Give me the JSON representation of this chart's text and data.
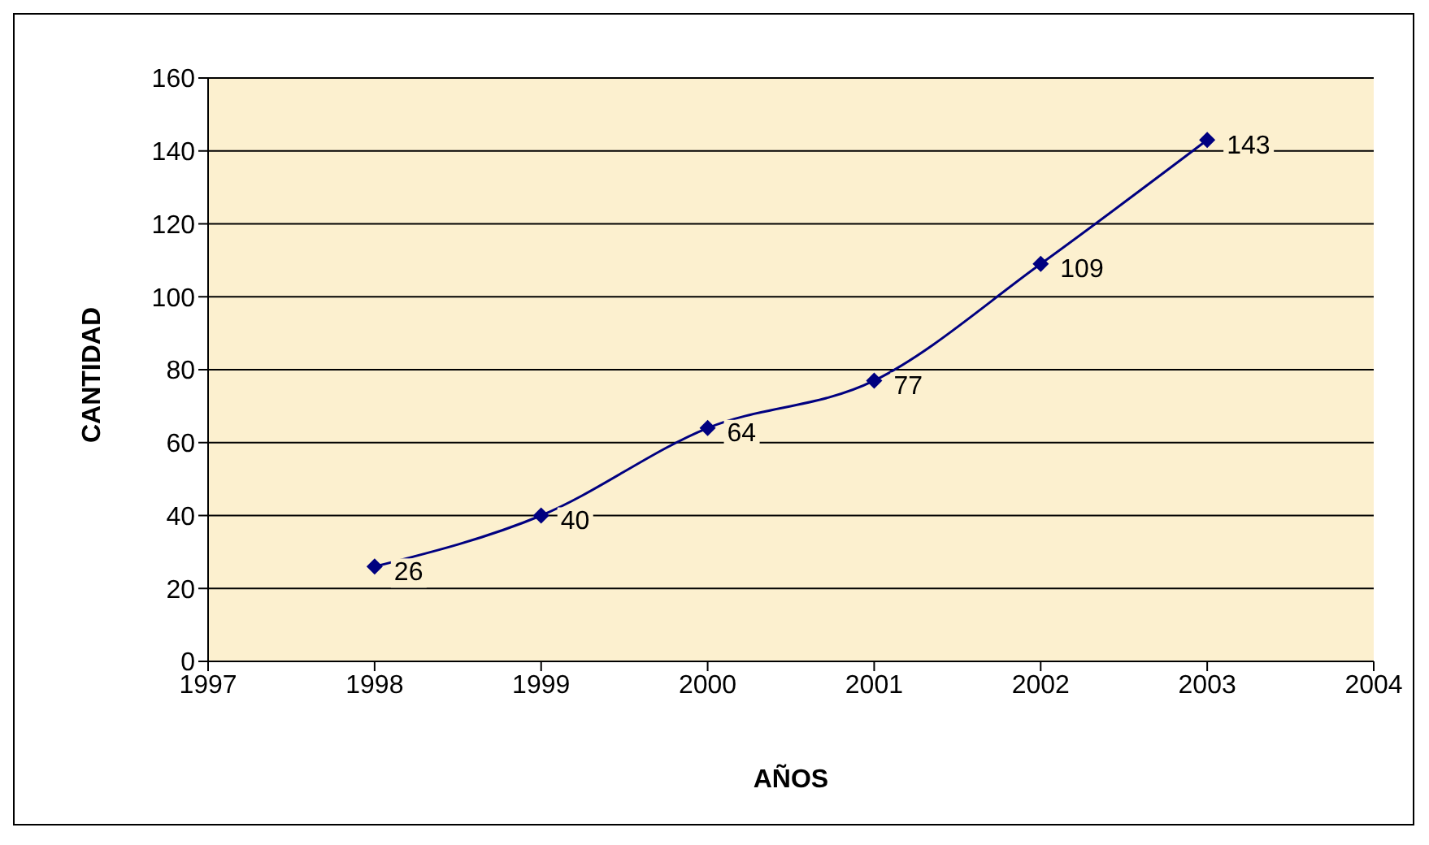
{
  "chart_data": {
    "type": "line",
    "xlabel": "AÑOS",
    "ylabel": "CANTIDAD",
    "x": [
      1998,
      1999,
      2000,
      2001,
      2002,
      2003
    ],
    "series": [
      {
        "color": "#000080",
        "values": [
          26,
          40,
          64,
          77,
          109,
          143
        ]
      }
    ],
    "xlim": [
      1997,
      2004
    ],
    "xticks": [
      1997,
      1998,
      1999,
      2000,
      2001,
      2002,
      2003,
      2004
    ],
    "ylim": [
      0,
      160
    ],
    "yticks": [
      0,
      20,
      40,
      60,
      80,
      100,
      120,
      140,
      160
    ],
    "grid": "y",
    "legend": false,
    "marker": "diamond",
    "line_style": "solid",
    "data_labels": true
  }
}
